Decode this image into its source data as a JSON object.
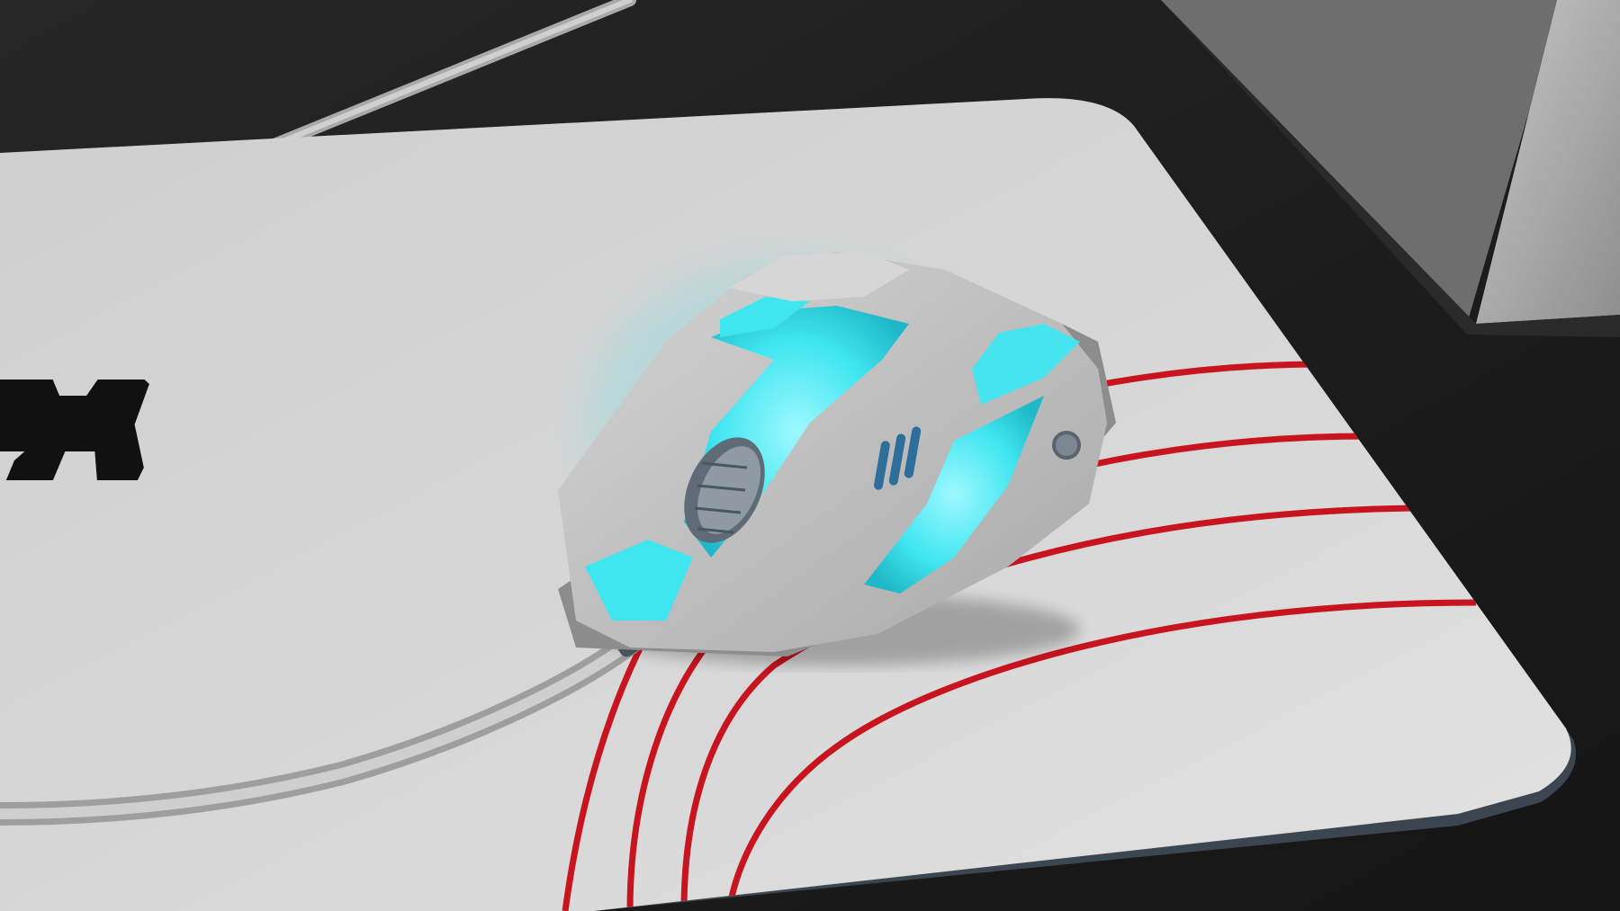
{
  "scene": {
    "description_visible_text": "",
    "logo_glyph": "H",
    "colors": {
      "background": "#1e1e1e",
      "desk": "#2a2a2a",
      "monitor_stand": "#b3b3b3",
      "pad_surface": "#d4d4d4",
      "pad_edge": "#3c4650",
      "pad_stripes": "#c8141e",
      "mouse_shell": "#c9c9c9",
      "mouse_glow": "#3fe6f0",
      "cable": "#bdbdbd",
      "logo": "#111111"
    },
    "icons": [
      "mouse-icon",
      "mousepad-icon",
      "cable-icon",
      "monitor-stand-icon",
      "logo-icon"
    ]
  }
}
